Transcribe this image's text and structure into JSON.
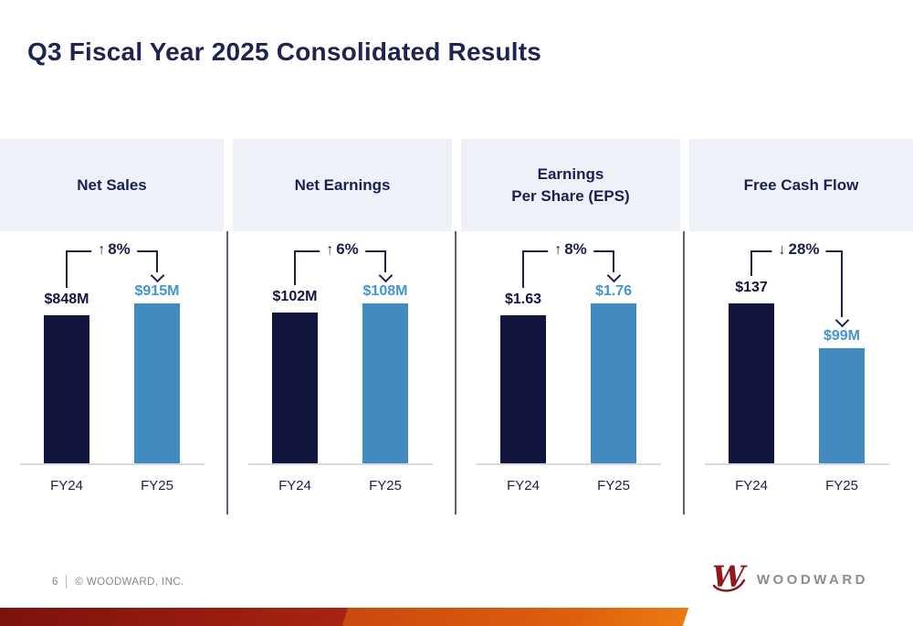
{
  "slide": {
    "title": "Q3 Fiscal Year 2025 Consolidated Results",
    "footer": {
      "page_number": "6",
      "copyright": "© WOODWARD, INC."
    },
    "logo": {
      "brand": "WOODWARD"
    }
  },
  "colors": {
    "navy": "#12163f",
    "title_navy": "#1e2450",
    "blue_bar": "#428bc1",
    "blue_label": "#4295cf",
    "header_band_bg": "#eef1f8",
    "divider": "#5d6379",
    "baseline": "#dadada",
    "footer_gray": "#85878a",
    "logo_red": "#8e191d",
    "logo_gray": "#8a8d90",
    "ribbon_red": "#7b110d",
    "ribbon_orange": "#ea7a12"
  },
  "chart_data": [
    {
      "type": "bar",
      "title": "Net Sales",
      "categories": [
        "FY24",
        "FY25"
      ],
      "values": [
        848,
        915
      ],
      "value_labels": [
        "$848M",
        "$915M"
      ],
      "change": {
        "arrow": "↑",
        "label": "8%",
        "direction": "up"
      }
    },
    {
      "type": "bar",
      "title": "Net Earnings",
      "categories": [
        "FY24",
        "FY25"
      ],
      "values": [
        102,
        108
      ],
      "value_labels": [
        "$102M",
        "$108M"
      ],
      "change": {
        "arrow": "↑",
        "label": "6%",
        "direction": "up"
      }
    },
    {
      "type": "bar",
      "title": "Earnings\nPer Share (EPS)",
      "categories": [
        "FY24",
        "FY25"
      ],
      "values": [
        1.63,
        1.76
      ],
      "value_labels": [
        "$1.63",
        "$1.76"
      ],
      "change": {
        "arrow": "↑",
        "label": "8%",
        "direction": "up"
      }
    },
    {
      "type": "bar",
      "title": "Free Cash Flow",
      "categories": [
        "FY24",
        "FY25"
      ],
      "values": [
        137,
        99
      ],
      "value_labels": [
        "$137",
        "$99M"
      ],
      "change": {
        "arrow": "↓",
        "label": "28%",
        "direction": "down"
      }
    }
  ]
}
